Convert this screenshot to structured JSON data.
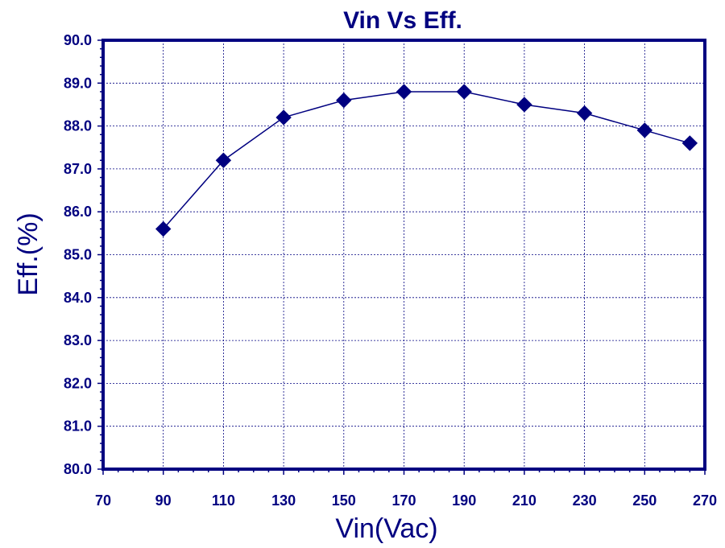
{
  "chart_data": {
    "type": "line",
    "title": "Vin Vs Eff.",
    "xlabel": "Vin(Vac)",
    "ylabel": "Eff.(%)",
    "xlim": [
      70,
      270
    ],
    "ylim": [
      80,
      90
    ],
    "x_ticks": [
      "70",
      "90",
      "110",
      "130",
      "150",
      "170",
      "190",
      "210",
      "230",
      "250",
      "270"
    ],
    "y_ticks": [
      "80.0",
      "81.0",
      "82.0",
      "83.0",
      "84.0",
      "85.0",
      "86.0",
      "87.0",
      "88.0",
      "89.0",
      "90.0"
    ],
    "grid": true,
    "marker": "diamond",
    "color": "#000080",
    "series": [
      {
        "x": [
          90,
          110,
          130,
          150,
          170,
          190,
          210,
          230,
          250,
          265
        ],
        "y": [
          85.6,
          87.2,
          88.2,
          88.6,
          88.8,
          88.8,
          88.5,
          88.3,
          87.9,
          87.6
        ]
      }
    ]
  }
}
